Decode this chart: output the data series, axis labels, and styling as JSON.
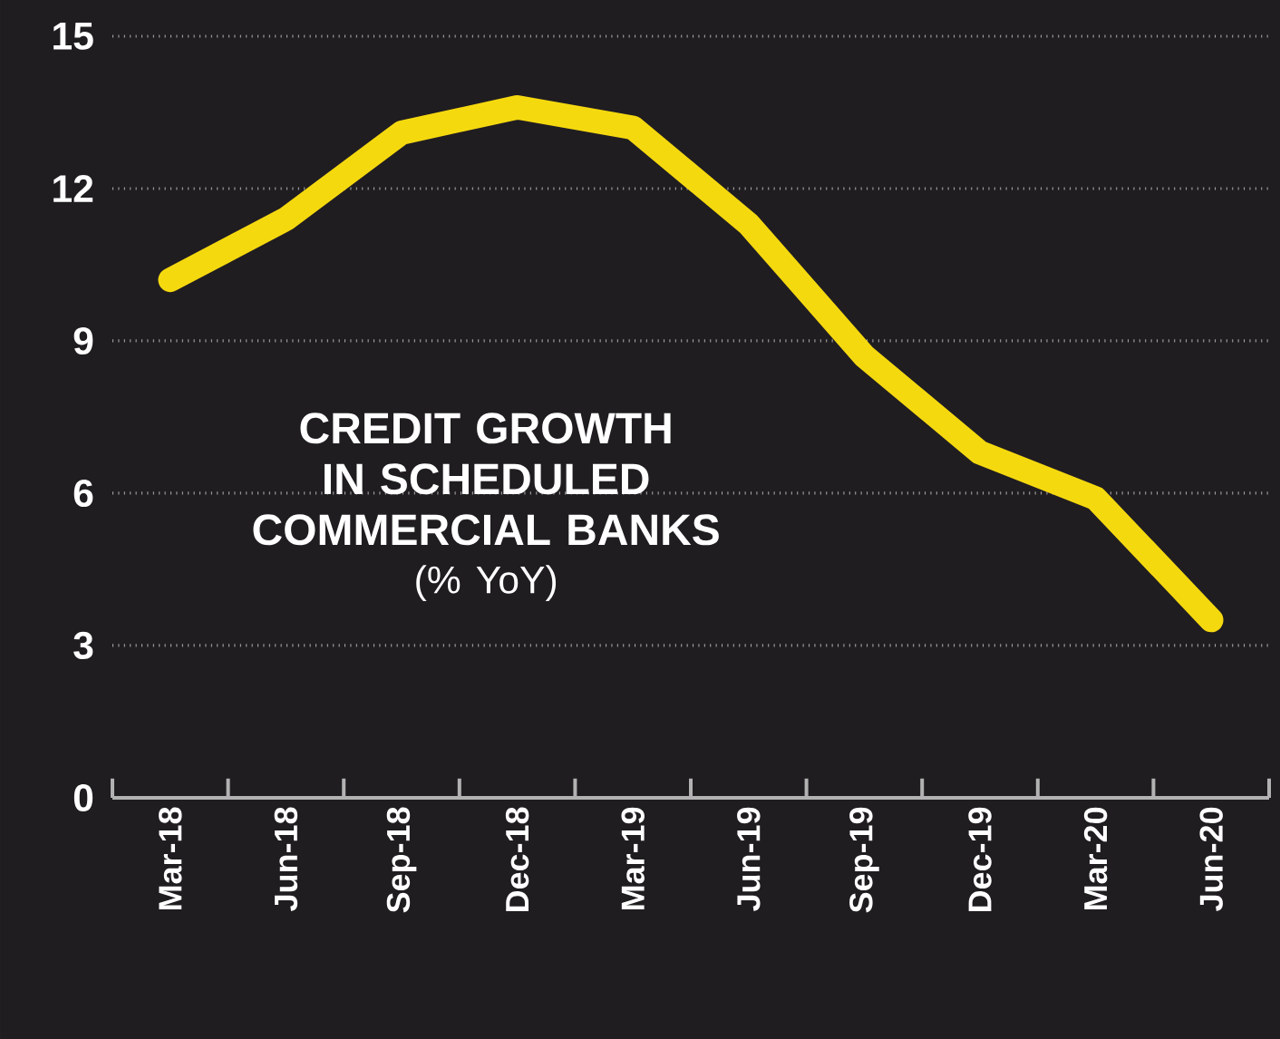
{
  "chart_data": {
    "type": "line",
    "title": "CREDIT GROWTH IN SCHEDULED COMMERCIAL BANKS",
    "subtitle": "(% YoY)",
    "categories": [
      "Mar-18",
      "Jun-18",
      "Sep-18",
      "Dec-18",
      "Mar-19",
      "Jun-19",
      "Sep-19",
      "Dec-19",
      "Mar-20",
      "Jun-20"
    ],
    "series": [
      {
        "color": "#f5d90f",
        "values": [
          10.2,
          11.4,
          13.1,
          13.6,
          13.2,
          11.3,
          8.7,
          6.8,
          5.9,
          3.5
        ]
      }
    ],
    "ylim": [
      0,
      15
    ],
    "yticks": [
      0,
      3,
      6,
      9,
      12,
      15
    ],
    "grid": "y",
    "line_style": "solid",
    "marker": "none"
  }
}
